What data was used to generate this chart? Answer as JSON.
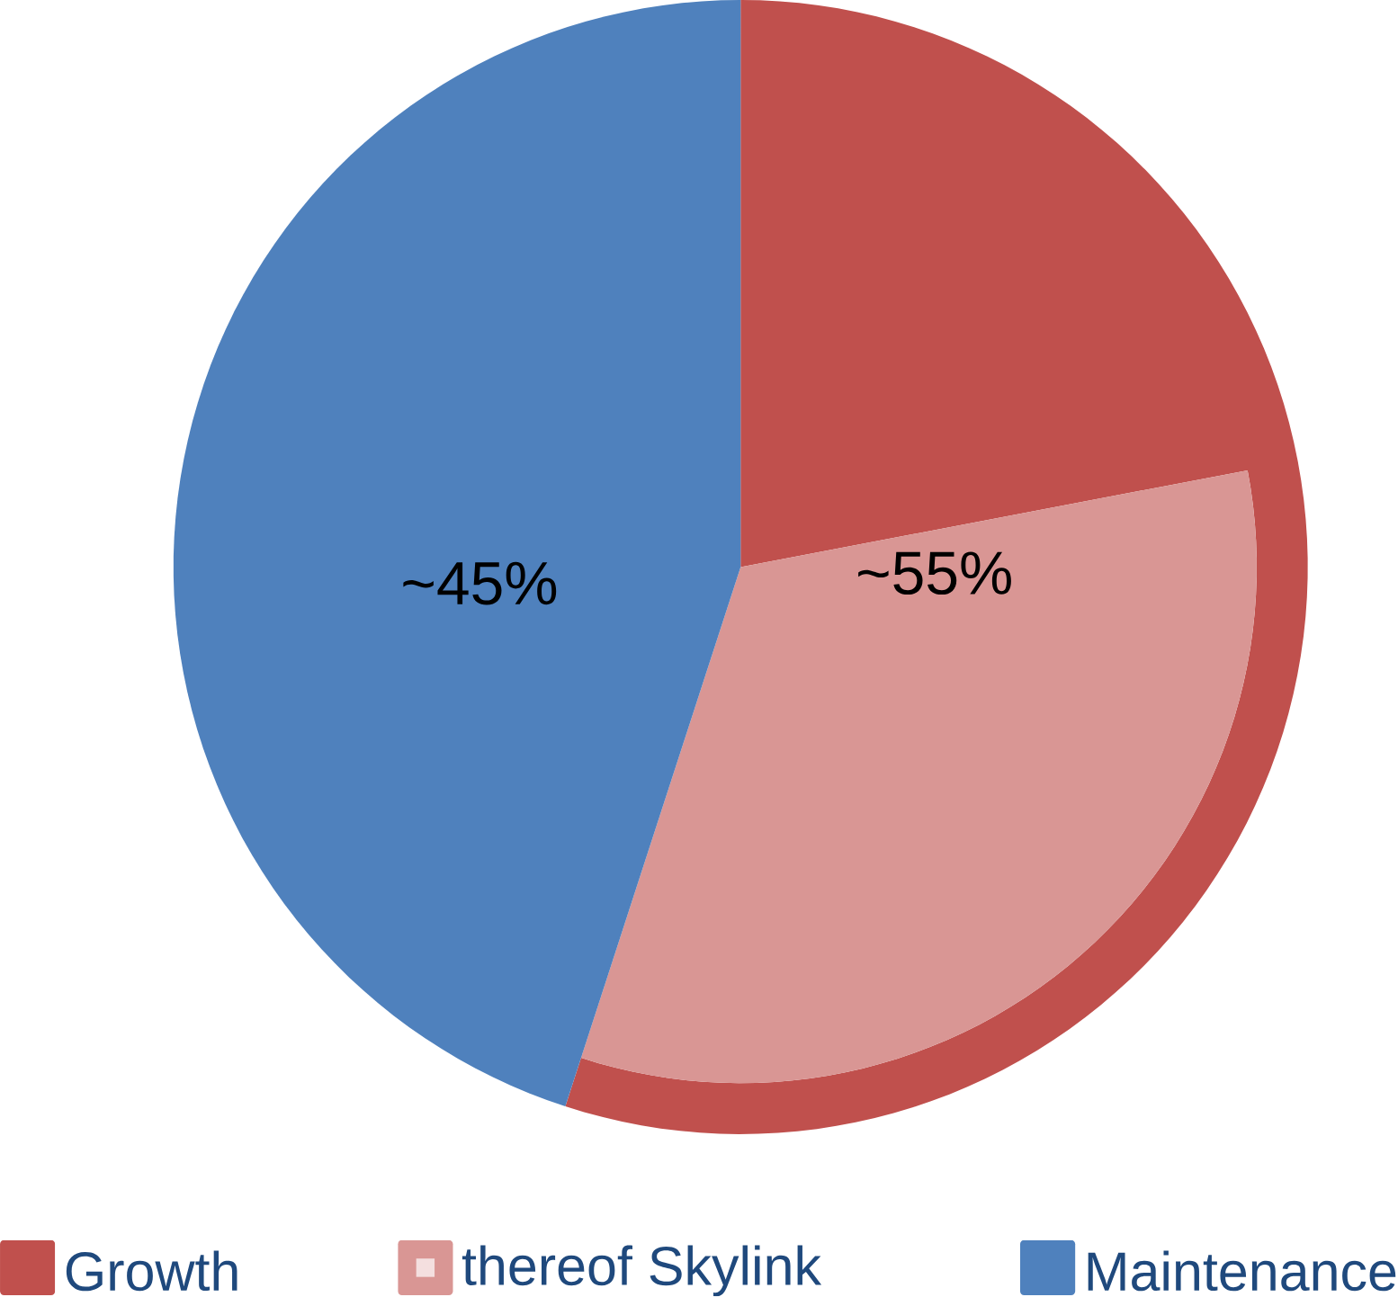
{
  "chart_data": {
    "type": "pie",
    "categories": [
      "Growth",
      "thereof Skylink",
      "Maintenance"
    ],
    "values": [
      22,
      33,
      45
    ],
    "colors": [
      "#c0504d",
      "#d99694",
      "#4f81bd"
    ],
    "legend": "bottom",
    "annotations": [
      "~55%",
      "~45%"
    ]
  }
}
